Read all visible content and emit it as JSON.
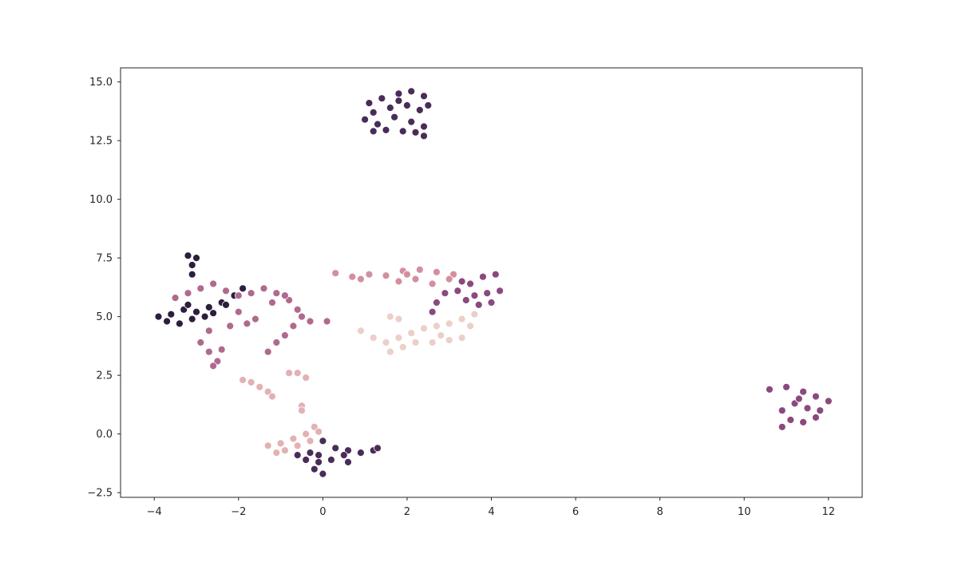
{
  "chart_data": {
    "type": "scatter",
    "title": "",
    "xlabel": "",
    "ylabel": "",
    "xlim": [
      -4.8,
      12.8
    ],
    "ylim": [
      -2.7,
      15.6
    ],
    "xticks": [
      -4,
      -2,
      0,
      2,
      4,
      6,
      8,
      10,
      12
    ],
    "yticks": [
      -2.5,
      0.0,
      2.5,
      5.0,
      7.5,
      10.0,
      12.5,
      15.0
    ],
    "xtick_labels": [
      "−4",
      "−2",
      "0",
      "2",
      "4",
      "6",
      "8",
      "10",
      "12"
    ],
    "ytick_labels": [
      "−2.5",
      "0.0",
      "2.5",
      "5.0",
      "7.5",
      "10.0",
      "12.5",
      "15.0"
    ],
    "grid": false,
    "legend": false,
    "colors": [
      "#2d1e3e",
      "#4a2c58",
      "#693a6a",
      "#8a4a7e",
      "#b06a8e",
      "#d48f9f",
      "#e3b1b4",
      "#ebcfc8"
    ],
    "clusters": [
      {
        "color_index": 1,
        "points": [
          [
            1.1,
            14.1
          ],
          [
            1.4,
            14.3
          ],
          [
            1.8,
            14.5
          ],
          [
            2.1,
            14.6
          ],
          [
            2.4,
            14.4
          ],
          [
            1.2,
            13.7
          ],
          [
            1.6,
            13.9
          ],
          [
            2.0,
            14.0
          ],
          [
            2.3,
            13.8
          ],
          [
            1.0,
            13.4
          ],
          [
            1.3,
            13.2
          ],
          [
            1.7,
            13.5
          ],
          [
            2.1,
            13.3
          ],
          [
            2.4,
            13.1
          ],
          [
            1.2,
            12.9
          ],
          [
            1.5,
            12.95
          ],
          [
            1.9,
            12.9
          ],
          [
            2.2,
            12.85
          ],
          [
            2.4,
            12.7
          ],
          [
            1.8,
            14.2
          ],
          [
            2.5,
            14.0
          ]
        ]
      },
      {
        "color_index": 0,
        "points": [
          [
            -3.9,
            5.0
          ],
          [
            -3.6,
            5.1
          ],
          [
            -3.3,
            5.3
          ],
          [
            -3.0,
            5.2
          ],
          [
            -2.7,
            5.4
          ],
          [
            -2.4,
            5.6
          ],
          [
            -2.1,
            5.9
          ],
          [
            -1.9,
            6.2
          ],
          [
            -3.7,
            4.8
          ],
          [
            -3.4,
            4.7
          ],
          [
            -3.1,
            4.9
          ],
          [
            -2.8,
            5.0
          ],
          [
            -2.6,
            5.15
          ],
          [
            -3.2,
            5.5
          ],
          [
            -2.3,
            5.5
          ],
          [
            -3.2,
            7.6
          ],
          [
            -3.0,
            7.5
          ],
          [
            -3.1,
            7.2
          ],
          [
            -3.1,
            6.8
          ]
        ]
      },
      {
        "color_index": 1,
        "points": [
          [
            0.0,
            -0.3
          ],
          [
            0.3,
            -0.6
          ],
          [
            0.6,
            -0.7
          ],
          [
            0.9,
            -0.8
          ],
          [
            1.2,
            -0.7
          ],
          [
            1.3,
            -0.6
          ],
          [
            -0.6,
            -0.9
          ],
          [
            -0.3,
            -0.8
          ],
          [
            -0.1,
            -1.2
          ],
          [
            -0.2,
            -1.5
          ],
          [
            0.0,
            -1.7
          ],
          [
            -0.4,
            -1.1
          ],
          [
            0.2,
            -1.1
          ],
          [
            0.5,
            -0.9
          ],
          [
            0.6,
            -1.2
          ],
          [
            -0.1,
            -0.9
          ]
        ]
      },
      {
        "color_index": 3,
        "points": [
          [
            3.2,
            6.1
          ],
          [
            3.5,
            6.4
          ],
          [
            3.8,
            6.7
          ],
          [
            4.1,
            6.8
          ],
          [
            3.6,
            5.9
          ],
          [
            3.9,
            6.0
          ],
          [
            4.2,
            6.1
          ],
          [
            3.4,
            5.7
          ],
          [
            3.7,
            5.5
          ],
          [
            4.0,
            5.6
          ],
          [
            3.3,
            6.5
          ],
          [
            2.9,
            6.0
          ],
          [
            2.7,
            5.6
          ],
          [
            2.6,
            5.2
          ],
          [
            11.0,
            2.0
          ],
          [
            11.4,
            1.8
          ],
          [
            11.7,
            1.6
          ],
          [
            12.0,
            1.4
          ],
          [
            11.2,
            1.3
          ],
          [
            11.5,
            1.1
          ],
          [
            11.8,
            1.0
          ],
          [
            10.9,
            1.0
          ],
          [
            11.1,
            0.6
          ],
          [
            11.4,
            0.5
          ],
          [
            11.7,
            0.7
          ],
          [
            10.9,
            0.3
          ],
          [
            10.6,
            1.9
          ],
          [
            11.3,
            1.5
          ]
        ]
      },
      {
        "color_index": 4,
        "points": [
          [
            -3.5,
            5.8
          ],
          [
            -3.2,
            6.0
          ],
          [
            -2.9,
            6.2
          ],
          [
            -2.6,
            6.4
          ],
          [
            -2.3,
            6.1
          ],
          [
            -2.0,
            5.9
          ],
          [
            -1.7,
            6.0
          ],
          [
            -1.4,
            6.2
          ],
          [
            -1.1,
            6.0
          ],
          [
            -0.8,
            5.7
          ],
          [
            -0.6,
            5.3
          ],
          [
            -0.5,
            5.0
          ],
          [
            -0.3,
            4.8
          ],
          [
            0.1,
            4.8
          ],
          [
            -0.7,
            4.6
          ],
          [
            -0.9,
            4.2
          ],
          [
            -1.1,
            3.9
          ],
          [
            -1.3,
            3.5
          ],
          [
            -2.9,
            3.9
          ],
          [
            -2.7,
            3.5
          ],
          [
            -2.5,
            3.1
          ],
          [
            -2.4,
            3.6
          ],
          [
            -2.7,
            4.4
          ],
          [
            -2.2,
            4.6
          ],
          [
            -1.8,
            4.7
          ],
          [
            -1.6,
            4.9
          ],
          [
            -2.0,
            5.2
          ],
          [
            -1.2,
            5.6
          ],
          [
            -0.9,
            5.9
          ],
          [
            -2.6,
            2.9
          ]
        ]
      },
      {
        "color_index": 5,
        "points": [
          [
            0.3,
            6.85
          ],
          [
            0.7,
            6.7
          ],
          [
            1.1,
            6.8
          ],
          [
            1.5,
            6.75
          ],
          [
            1.9,
            6.95
          ],
          [
            2.3,
            7.0
          ],
          [
            2.7,
            6.9
          ],
          [
            3.1,
            6.8
          ],
          [
            1.8,
            6.5
          ],
          [
            2.2,
            6.6
          ],
          [
            2.6,
            6.4
          ],
          [
            3.0,
            6.6
          ],
          [
            0.9,
            6.6
          ],
          [
            2.0,
            6.8
          ]
        ]
      },
      {
        "color_index": 6,
        "points": [
          [
            -0.8,
            2.6
          ],
          [
            -0.6,
            2.6
          ],
          [
            -0.4,
            2.4
          ],
          [
            -1.9,
            2.3
          ],
          [
            -1.7,
            2.2
          ],
          [
            -1.5,
            2.0
          ],
          [
            -1.3,
            1.8
          ],
          [
            -1.2,
            1.6
          ],
          [
            -0.5,
            1.2
          ],
          [
            -0.5,
            1.0
          ],
          [
            -1.3,
            -0.5
          ],
          [
            -1.0,
            -0.4
          ],
          [
            -0.7,
            -0.2
          ],
          [
            -0.4,
            0.0
          ],
          [
            -0.2,
            0.3
          ],
          [
            -0.9,
            -0.7
          ],
          [
            -0.6,
            -0.5
          ],
          [
            -0.3,
            -0.3
          ],
          [
            -0.1,
            0.1
          ],
          [
            -1.1,
            -0.8
          ]
        ]
      },
      {
        "color_index": 7,
        "points": [
          [
            0.9,
            4.4
          ],
          [
            1.2,
            4.1
          ],
          [
            1.5,
            3.9
          ],
          [
            1.8,
            4.1
          ],
          [
            2.1,
            4.3
          ],
          [
            2.4,
            4.5
          ],
          [
            2.7,
            4.6
          ],
          [
            3.0,
            4.7
          ],
          [
            3.3,
            4.9
          ],
          [
            3.6,
            5.1
          ],
          [
            2.2,
            3.9
          ],
          [
            2.6,
            3.9
          ],
          [
            3.0,
            4.0
          ],
          [
            3.3,
            4.1
          ],
          [
            1.6,
            3.5
          ],
          [
            1.9,
            3.7
          ],
          [
            2.8,
            4.2
          ],
          [
            1.6,
            5.0
          ],
          [
            1.8,
            4.9
          ],
          [
            3.5,
            4.6
          ]
        ]
      }
    ]
  }
}
